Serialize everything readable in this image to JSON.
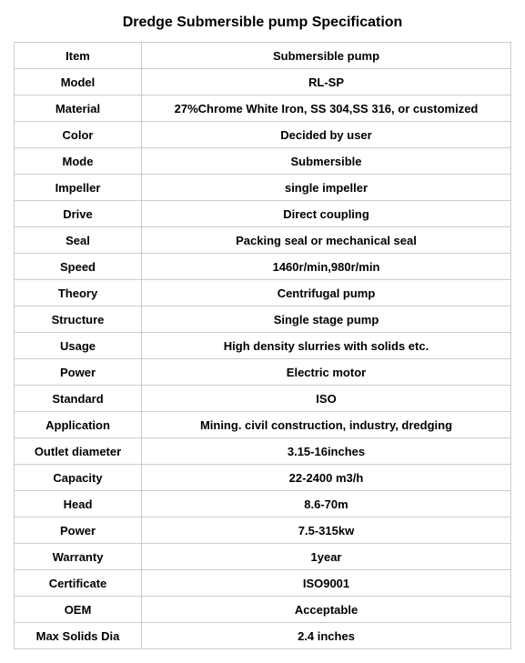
{
  "title": "Dredge Submersible pump Specification",
  "spec_table": {
    "label_col_width": 140,
    "border_color": "#cccccc",
    "text_color": "#000000",
    "font_size": 13,
    "font_weight": "bold",
    "rows": [
      {
        "label": "Item",
        "value": "Submersible pump"
      },
      {
        "label": "Model",
        "value": "RL-SP"
      },
      {
        "label": "Material",
        "value": "27%Chrome White Iron, SS 304,SS 316, or customized"
      },
      {
        "label": "Color",
        "value": "Decided by user"
      },
      {
        "label": "Mode",
        "value": "Submersible"
      },
      {
        "label": "Impeller",
        "value": "single impeller"
      },
      {
        "label": "Drive",
        "value": "Direct coupling"
      },
      {
        "label": "Seal",
        "value": "Packing seal or mechanical seal"
      },
      {
        "label": "Speed",
        "value": "1460r/min,980r/min"
      },
      {
        "label": "Theory",
        "value": "Centrifugal pump"
      },
      {
        "label": "Structure",
        "value": "Single stage pump"
      },
      {
        "label": "Usage",
        "value": "High density slurries with solids etc."
      },
      {
        "label": "Power",
        "value": "Electric motor"
      },
      {
        "label": "Standard",
        "value": "ISO"
      },
      {
        "label": "Application",
        "value": "Mining. civil construction, industry, dredging"
      },
      {
        "label": "Outlet diameter",
        "value": "3.15-16inches"
      },
      {
        "label": "Capacity",
        "value": "22-2400 m3/h"
      },
      {
        "label": "Head",
        "value": "8.6-70m"
      },
      {
        "label": "Power",
        "value": "7.5-315kw"
      },
      {
        "label": "Warranty",
        "value": "1year"
      },
      {
        "label": "Certificate",
        "value": "ISO9001"
      },
      {
        "label": "OEM",
        "value": "Acceptable"
      },
      {
        "label": "Max Solids Dia",
        "value": "2.4 inches"
      }
    ]
  }
}
